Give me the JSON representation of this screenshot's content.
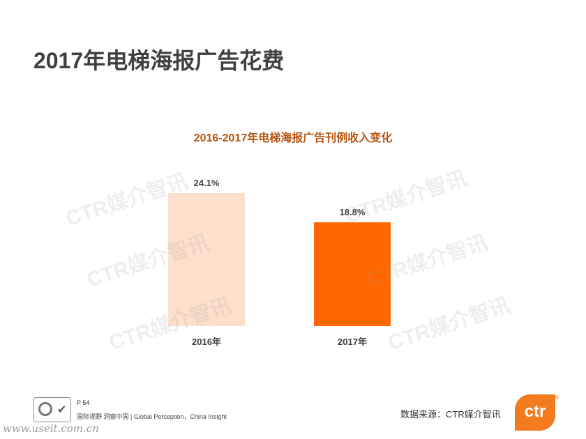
{
  "page": {
    "title": "2017年电梯海报广告花费",
    "watermark_text": "CTR媒介智讯",
    "page_number": "P 54",
    "footer_tagline": "国际视野  洞察中国 |  Global Perception，China Insight",
    "source": "数据来源：CTR媒介智讯",
    "logo_text": "ctr",
    "site_watermark": "www.useit.com.cn"
  },
  "chart_data": {
    "type": "bar",
    "title": "2016-2017年电梯海报广告刊例收入变化",
    "categories": [
      "2016年",
      "2017年"
    ],
    "values": [
      24.1,
      18.8
    ],
    "value_labels": [
      "24.1%",
      "18.8%"
    ],
    "colors": [
      "#fde0cb",
      "#ff6600"
    ],
    "ylim": [
      0,
      26
    ],
    "grid": false,
    "legend": "none"
  }
}
